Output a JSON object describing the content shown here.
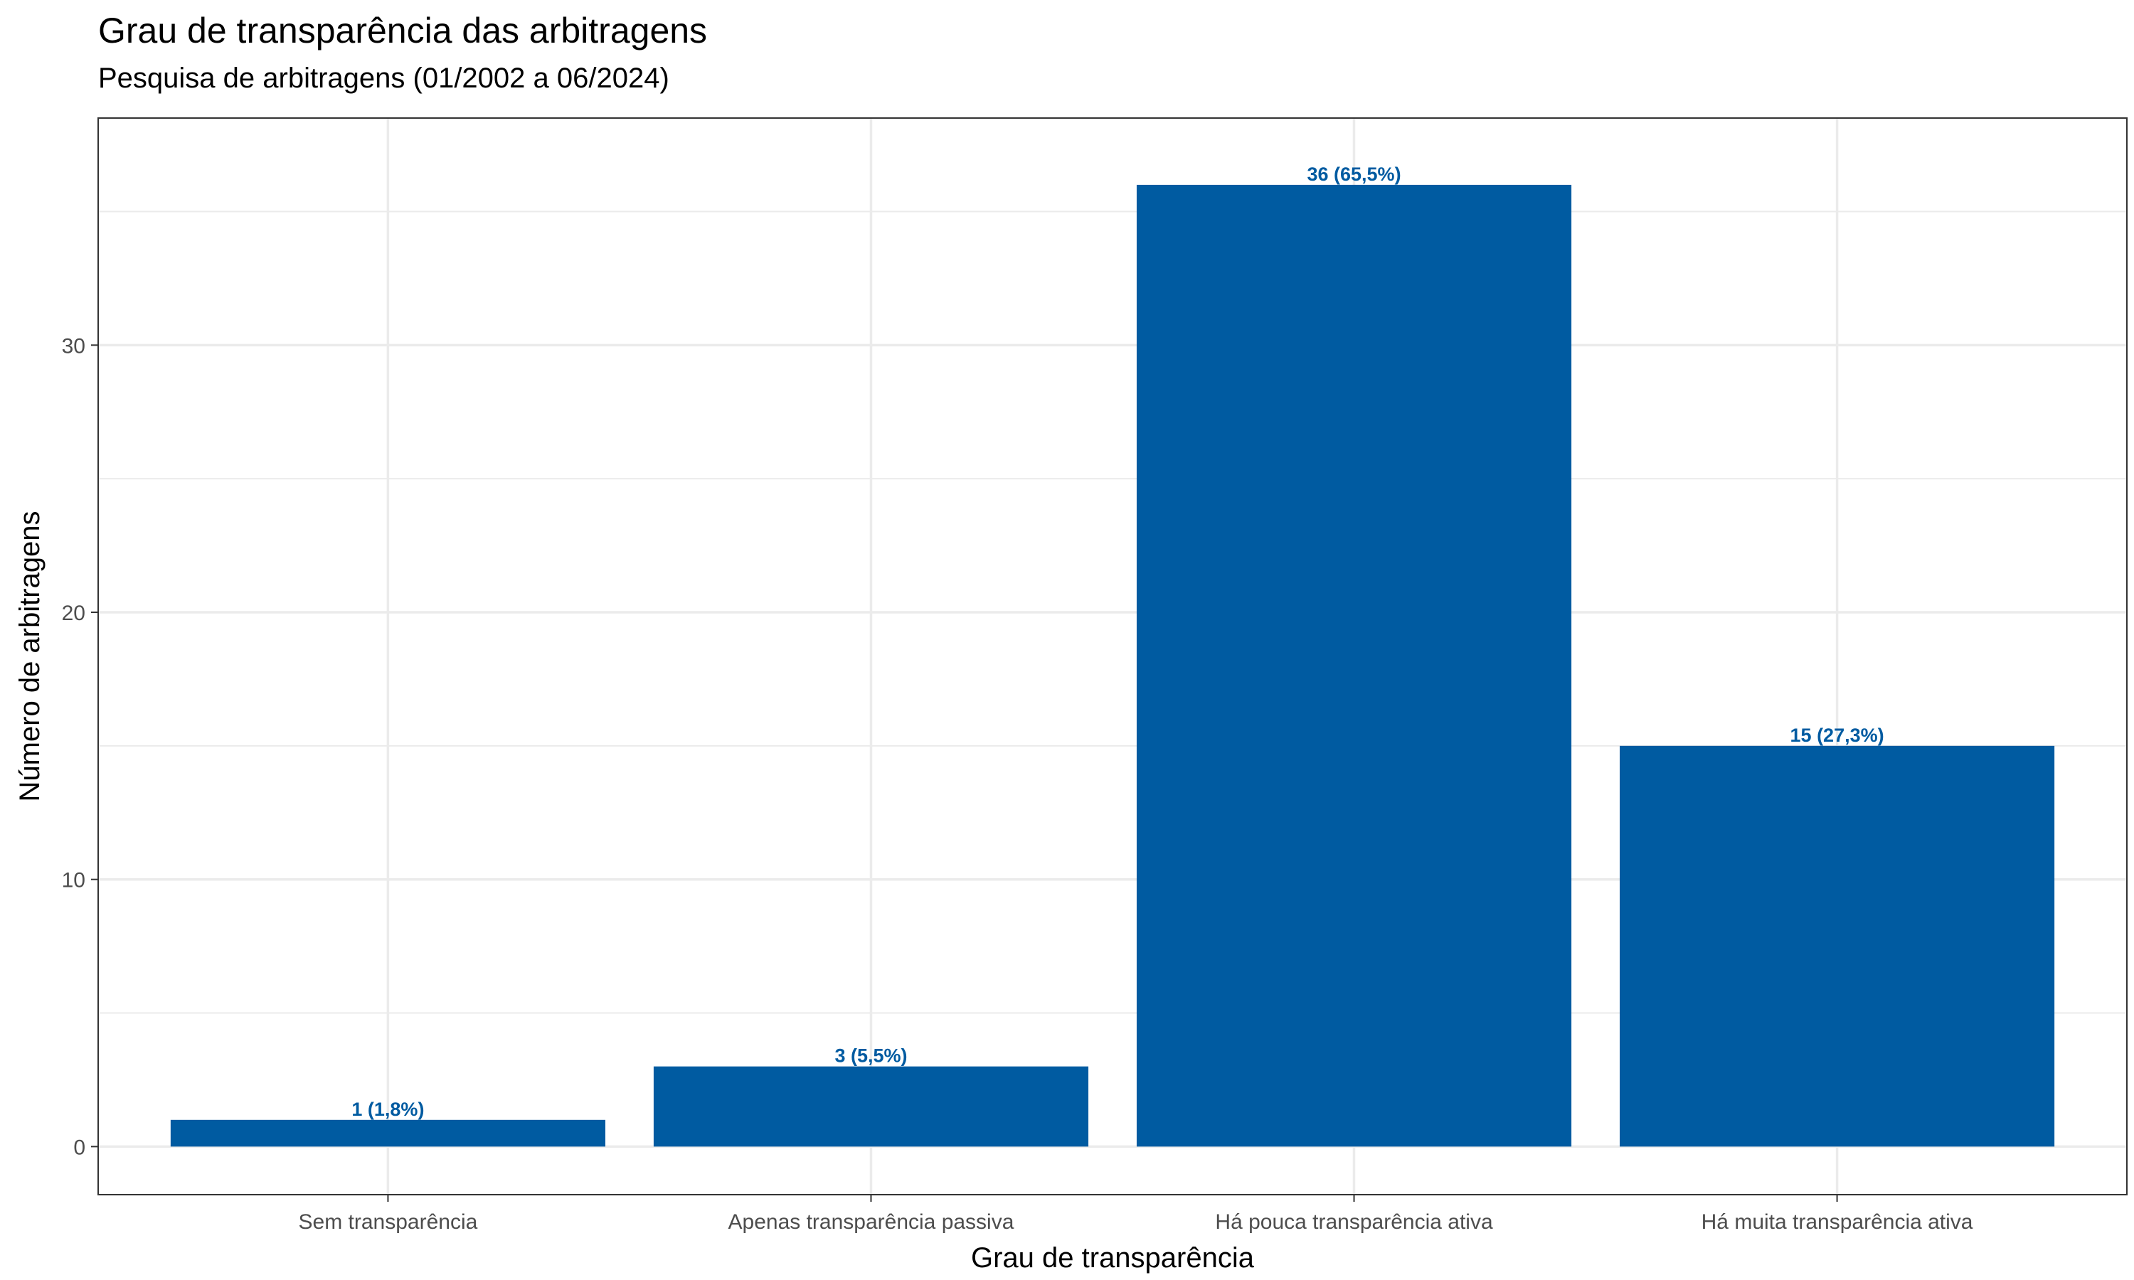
{
  "chart_data": {
    "type": "bar",
    "title": "Grau de transparência das arbitragens",
    "subtitle": "Pesquisa de arbitragens (01/2002 a 06/2024)",
    "xlabel": "Grau de transparência",
    "ylabel": "Número de arbitragens",
    "categories": [
      "Sem transparência",
      "Apenas transparência passiva",
      "Há pouca transparência ativa",
      "Há muita transparência ativa"
    ],
    "values": [
      1,
      3,
      36,
      15
    ],
    "data_labels": [
      "1 (1,8%)",
      "3 (5,5%)",
      "36 (65,5%)",
      "15 (27,3%)"
    ],
    "ylim": [
      -1.8,
      38.5
    ],
    "yticks": [
      0,
      10,
      20,
      30
    ],
    "ytick_labels": [
      "0",
      "10",
      "20",
      "30"
    ],
    "grid": true,
    "legend": "none",
    "colors": {
      "bar": "#005ba1",
      "label": "#005ba1",
      "grid": "#ebebeb",
      "panel_border": "#333333"
    }
  }
}
